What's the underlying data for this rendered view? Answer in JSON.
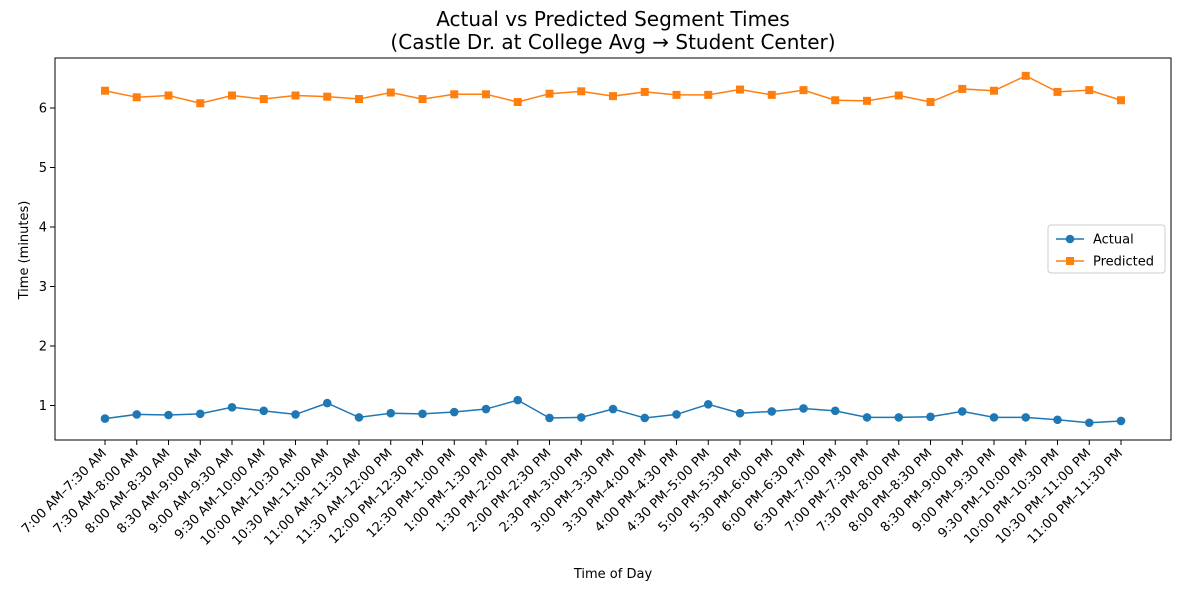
{
  "chart_data": {
    "type": "line",
    "title": "Actual vs Predicted Segment Times",
    "subtitle": "(Castle Dr. at College Avg → Student Center)",
    "xlabel": "Time of Day",
    "ylabel": "Time (minutes)",
    "ylim": [
      0.42,
      6.84
    ],
    "yticks": [
      "1",
      "2",
      "3",
      "4",
      "5",
      "6"
    ],
    "legend_position": "center-right",
    "grid": false,
    "categories": [
      "7:00 AM–7:30 AM",
      "7:30 AM–8:00 AM",
      "8:00 AM–8:30 AM",
      "8:30 AM–9:00 AM",
      "9:00 AM–9:30 AM",
      "9:30 AM–10:00 AM",
      "10:00 AM–10:30 AM",
      "10:30 AM–11:00 AM",
      "11:00 AM–11:30 AM",
      "11:30 AM–12:00 PM",
      "12:00 PM–12:30 PM",
      "12:30 PM–1:00 PM",
      "1:00 PM–1:30 PM",
      "1:30 PM–2:00 PM",
      "2:00 PM–2:30 PM",
      "2:30 PM–3:00 PM",
      "3:00 PM–3:30 PM",
      "3:30 PM–4:00 PM",
      "4:00 PM–4:30 PM",
      "4:30 PM–5:00 PM",
      "5:00 PM–5:30 PM",
      "5:30 PM–6:00 PM",
      "6:00 PM–6:30 PM",
      "6:30 PM–7:00 PM",
      "7:00 PM–7:30 PM",
      "7:30 PM–8:00 PM",
      "8:00 PM–8:30 PM",
      "8:30 PM–9:00 PM",
      "9:00 PM–9:30 PM",
      "9:30 PM–10:00 PM",
      "10:00 PM–10:30 PM",
      "10:30 PM–11:00 PM",
      "11:00 PM–11:30 PM"
    ],
    "series": [
      {
        "name": "Actual",
        "color": "#1f77b4",
        "marker": "circle",
        "values": [
          0.78,
          0.85,
          0.84,
          0.86,
          0.97,
          0.91,
          0.85,
          1.04,
          0.8,
          0.87,
          0.86,
          0.89,
          0.94,
          1.09,
          0.79,
          0.8,
          0.94,
          0.79,
          0.85,
          1.02,
          0.87,
          0.9,
          0.95,
          0.91,
          0.8,
          0.8,
          0.81,
          0.9,
          0.8,
          0.8,
          0.76,
          0.71,
          0.74
        ]
      },
      {
        "name": "Predicted",
        "color": "#ff7f0e",
        "marker": "square",
        "values": [
          6.29,
          6.18,
          6.21,
          6.08,
          6.21,
          6.15,
          6.21,
          6.19,
          6.15,
          6.26,
          6.15,
          6.23,
          6.23,
          6.1,
          6.24,
          6.28,
          6.2,
          6.27,
          6.22,
          6.22,
          6.31,
          6.22,
          6.3,
          6.13,
          6.12,
          6.21,
          6.1,
          6.32,
          6.29,
          6.54,
          6.27,
          6.3,
          6.13
        ]
      }
    ]
  }
}
